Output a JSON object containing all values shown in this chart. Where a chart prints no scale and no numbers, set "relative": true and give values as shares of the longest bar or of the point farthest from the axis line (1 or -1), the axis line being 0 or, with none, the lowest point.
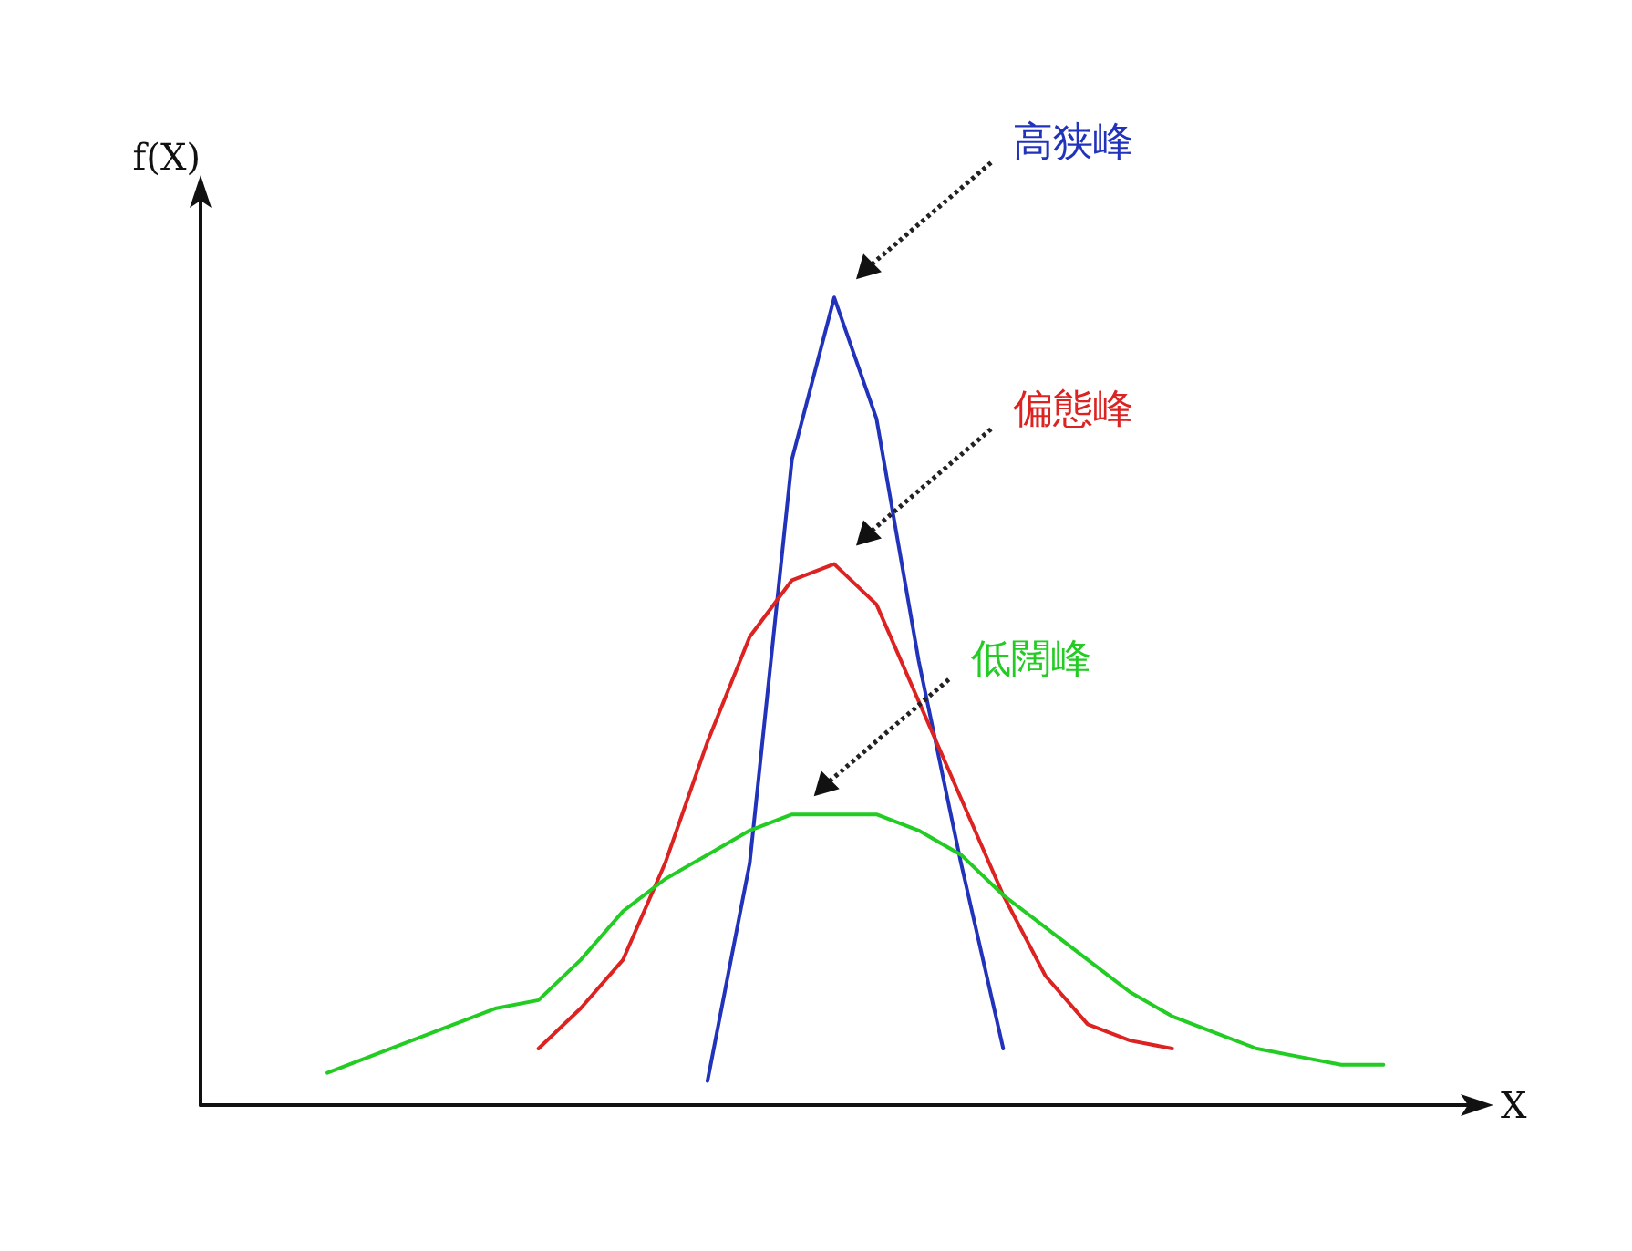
{
  "chart_data": {
    "type": "line",
    "relative": true,
    "xlabel": "X",
    "ylabel": "f(X)",
    "marker": "none",
    "line_style": "solid",
    "grid": false,
    "categories": [
      null,
      null,
      null,
      null,
      null,
      null,
      null,
      null,
      null,
      null,
      null,
      null,
      null,
      null,
      null,
      null,
      null,
      null,
      null,
      null,
      null,
      null,
      null,
      null,
      null,
      null,
      null,
      null,
      null,
      null,
      null
    ],
    "series": [
      {
        "color": "#2233bb",
        "values": [
          null,
          null,
          null,
          null,
          null,
          null,
          null,
          null,
          null,
          null,
          null,
          null,
          0.03,
          0.3,
          0.8,
          1.0,
          0.85,
          0.55,
          0.3,
          0.07,
          null,
          null,
          null,
          null,
          null,
          null,
          null,
          null,
          null,
          null,
          null
        ]
      },
      {
        "color": "#dd2222",
        "values": [
          null,
          null,
          null,
          null,
          null,
          null,
          null,
          null,
          0.07,
          0.12,
          0.18,
          0.3,
          0.45,
          0.58,
          0.65,
          0.67,
          0.62,
          0.5,
          0.38,
          0.26,
          0.16,
          0.1,
          0.08,
          0.07,
          null,
          null,
          null,
          null,
          null,
          null,
          null
        ]
      },
      {
        "color": "#22cc22",
        "values": [
          null,
          null,
          null,
          0.04,
          0.06,
          0.08,
          0.1,
          0.12,
          0.13,
          0.18,
          0.24,
          0.28,
          0.31,
          0.34,
          0.36,
          0.36,
          0.36,
          0.34,
          0.31,
          0.26,
          0.22,
          0.18,
          0.14,
          0.11,
          0.09,
          0.07,
          0.06,
          0.05,
          0.05,
          null,
          null
        ]
      }
    ],
    "annotations": [
      "高狭峰",
      "偏態峰",
      "低闊峰"
    ]
  }
}
